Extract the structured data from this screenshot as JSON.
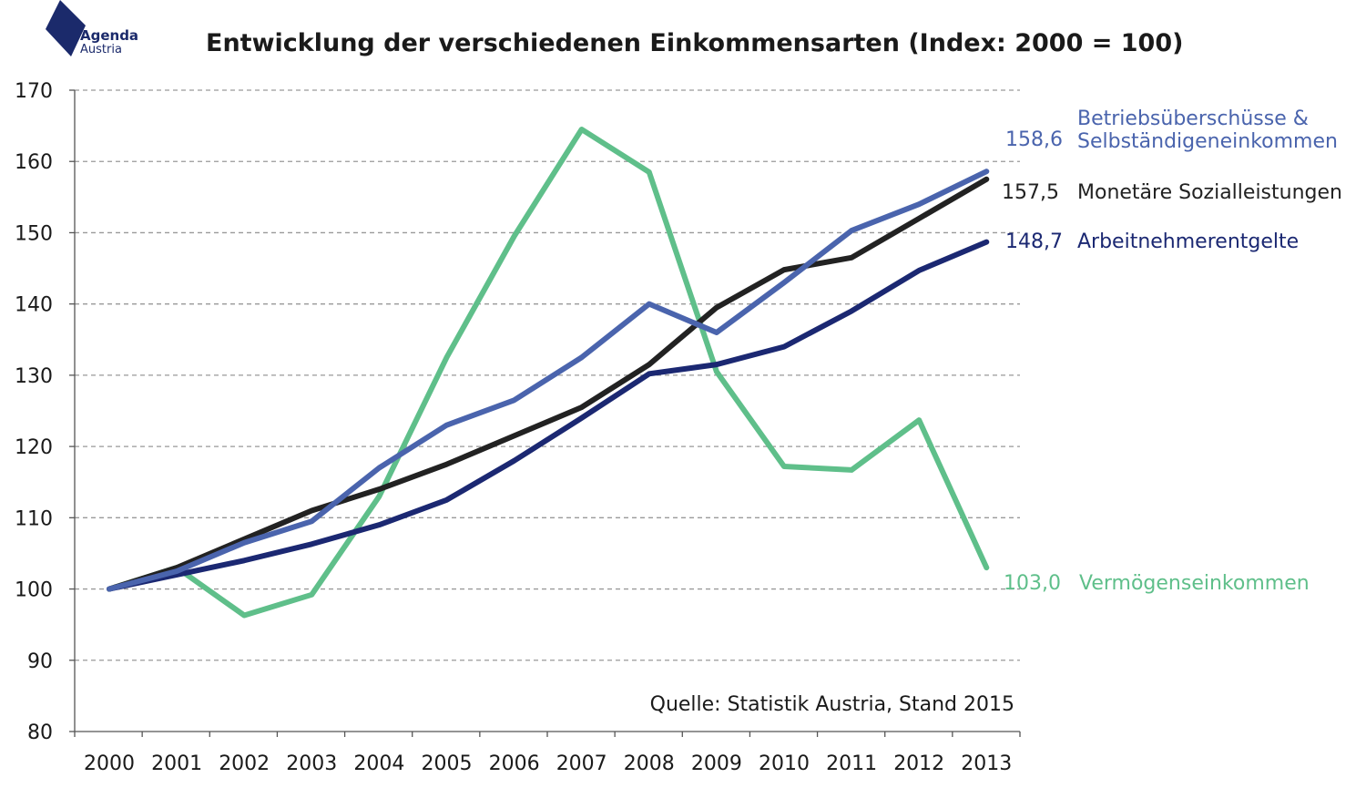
{
  "logo": {
    "line1": "Agenda",
    "line2": "Austria"
  },
  "colors": {
    "betrieb": "#4a64ad",
    "monetaer": "#222222",
    "arbeit": "#1b2872",
    "vermoegen": "#5fbf8a",
    "grid": "#999999"
  },
  "chart_data": {
    "type": "line",
    "title": "Entwicklung der verschiedenen Einkommensarten (Index: 2000 = 100)",
    "x": [
      "2000",
      "2001",
      "2002",
      "2003",
      "2004",
      "2005",
      "2006",
      "2007",
      "2008",
      "2009",
      "2010",
      "2011",
      "2012",
      "2013"
    ],
    "ylim": [
      80,
      170
    ],
    "yticks": [
      "80",
      "90",
      "100",
      "110",
      "120",
      "130",
      "140",
      "150",
      "160",
      "170"
    ],
    "grid": true,
    "source": "Quelle: Statistik Austria, Stand 2015",
    "series": [
      {
        "key": "betrieb",
        "name_lines": [
          "Betriebsüberschüsse &",
          "Selbständigeneinkommen"
        ],
        "end_label": "158,6",
        "values": [
          100,
          102.5,
          106.5,
          109.5,
          117,
          123,
          126.5,
          132.5,
          140,
          136,
          143,
          150.3,
          154,
          158.6
        ]
      },
      {
        "key": "monetaer",
        "name_lines": [
          "Monetäre Sozialleistungen"
        ],
        "end_label": "157,5",
        "values": [
          100,
          103,
          107,
          111,
          114,
          117.5,
          121.5,
          125.5,
          131.5,
          139.5,
          144.8,
          146.5,
          152,
          157.5
        ]
      },
      {
        "key": "arbeit",
        "name_lines": [
          "Arbeitnehmerentgelte"
        ],
        "end_label": "148,7",
        "values": [
          100,
          102,
          104,
          106.3,
          109,
          112.5,
          118,
          124,
          130.2,
          131.5,
          134,
          139,
          144.7,
          148.7
        ]
      },
      {
        "key": "vermoegen",
        "name_lines": [
          "Vermögenseinkommen"
        ],
        "end_label": "103,0",
        "values": [
          100,
          103,
          96.3,
          99.2,
          113,
          132.5,
          149.5,
          164.5,
          158.5,
          130.5,
          117.2,
          116.7,
          123.7,
          103.0
        ]
      }
    ]
  }
}
